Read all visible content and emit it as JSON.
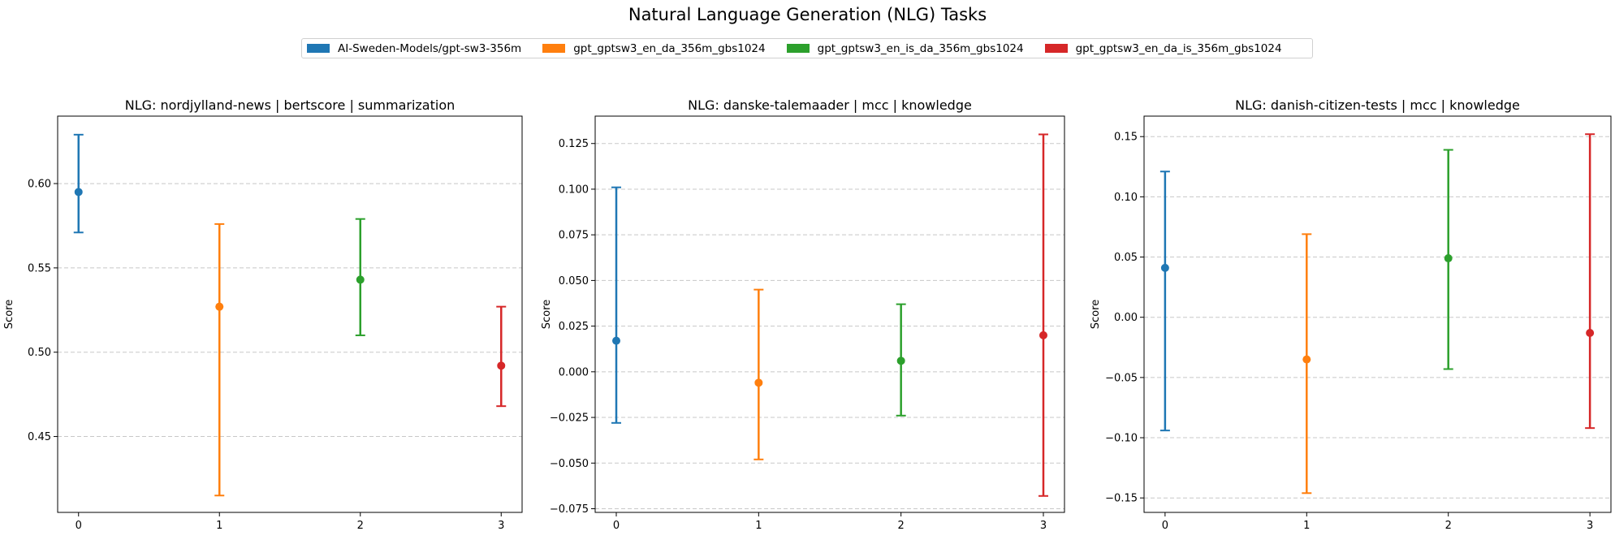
{
  "figure": {
    "title": "Natural Language Generation (NLG) Tasks"
  },
  "legend": {
    "entries": [
      {
        "label": "AI-Sweden-Models/gpt-sw3-356m",
        "color": "#1f77b4"
      },
      {
        "label": "gpt_gptsw3_en_da_356m_gbs1024",
        "color": "#ff7f0e"
      },
      {
        "label": "gpt_gptsw3_en_is_da_356m_gbs1024",
        "color": "#2ca02c"
      },
      {
        "label": "gpt_gptsw3_en_da_is_356m_gbs1024",
        "color": "#d62728"
      }
    ]
  },
  "chart_data": [
    {
      "type": "scatter",
      "title": "NLG: nordjylland-news | bertscore | summarization",
      "ylabel": "Score",
      "xticks": [
        "0",
        "1",
        "2",
        "3"
      ],
      "yticks": [
        0.45,
        0.5,
        0.55,
        0.6
      ],
      "ytick_labels": [
        "0.45",
        "0.50",
        "0.55",
        "0.60"
      ],
      "ylim": [
        0.405,
        0.64
      ],
      "grid": "y-dashed",
      "points": [
        {
          "x": 0,
          "y": 0.595,
          "low": 0.571,
          "high": 0.629,
          "color": "#1f77b4"
        },
        {
          "x": 1,
          "y": 0.527,
          "low": 0.415,
          "high": 0.576,
          "color": "#ff7f0e"
        },
        {
          "x": 2,
          "y": 0.543,
          "low": 0.51,
          "high": 0.579,
          "color": "#2ca02c"
        },
        {
          "x": 3,
          "y": 0.492,
          "low": 0.468,
          "high": 0.527,
          "color": "#d62728"
        }
      ]
    },
    {
      "type": "scatter",
      "title": "NLG: danske-talemaader | mcc | knowledge",
      "ylabel": "Score",
      "xticks": [
        "0",
        "1",
        "2",
        "3"
      ],
      "yticks": [
        -0.075,
        -0.05,
        -0.025,
        0.0,
        0.025,
        0.05,
        0.075,
        0.1,
        0.125
      ],
      "ytick_labels": [
        "−0.075",
        "−0.050",
        "−0.025",
        "0.000",
        "0.025",
        "0.050",
        "0.075",
        "0.100",
        "0.125"
      ],
      "ylim": [
        -0.077,
        0.14
      ],
      "grid": "y-dashed",
      "points": [
        {
          "x": 0,
          "y": 0.017,
          "low": -0.028,
          "high": 0.101,
          "color": "#1f77b4"
        },
        {
          "x": 1,
          "y": -0.006,
          "low": -0.048,
          "high": 0.045,
          "color": "#ff7f0e"
        },
        {
          "x": 2,
          "y": 0.006,
          "low": -0.024,
          "high": 0.037,
          "color": "#2ca02c"
        },
        {
          "x": 3,
          "y": 0.02,
          "low": -0.068,
          "high": 0.13,
          "color": "#d62728"
        }
      ]
    },
    {
      "type": "scatter",
      "title": "NLG: danish-citizen-tests | mcc | knowledge",
      "ylabel": "Score",
      "xticks": [
        "0",
        "1",
        "2",
        "3"
      ],
      "yticks": [
        -0.15,
        -0.1,
        -0.05,
        0.0,
        0.05,
        0.1,
        0.15
      ],
      "ytick_labels": [
        "−0.15",
        "−0.10",
        "−0.05",
        "0.00",
        "0.05",
        "0.10",
        "0.15"
      ],
      "ylim": [
        -0.162,
        0.167
      ],
      "grid": "y-dashed",
      "points": [
        {
          "x": 0,
          "y": 0.041,
          "low": -0.094,
          "high": 0.121,
          "color": "#1f77b4"
        },
        {
          "x": 1,
          "y": -0.035,
          "low": -0.146,
          "high": 0.069,
          "color": "#ff7f0e"
        },
        {
          "x": 2,
          "y": 0.049,
          "low": -0.043,
          "high": 0.139,
          "color": "#2ca02c"
        },
        {
          "x": 3,
          "y": -0.013,
          "low": -0.092,
          "high": 0.152,
          "color": "#d62728"
        }
      ]
    }
  ]
}
